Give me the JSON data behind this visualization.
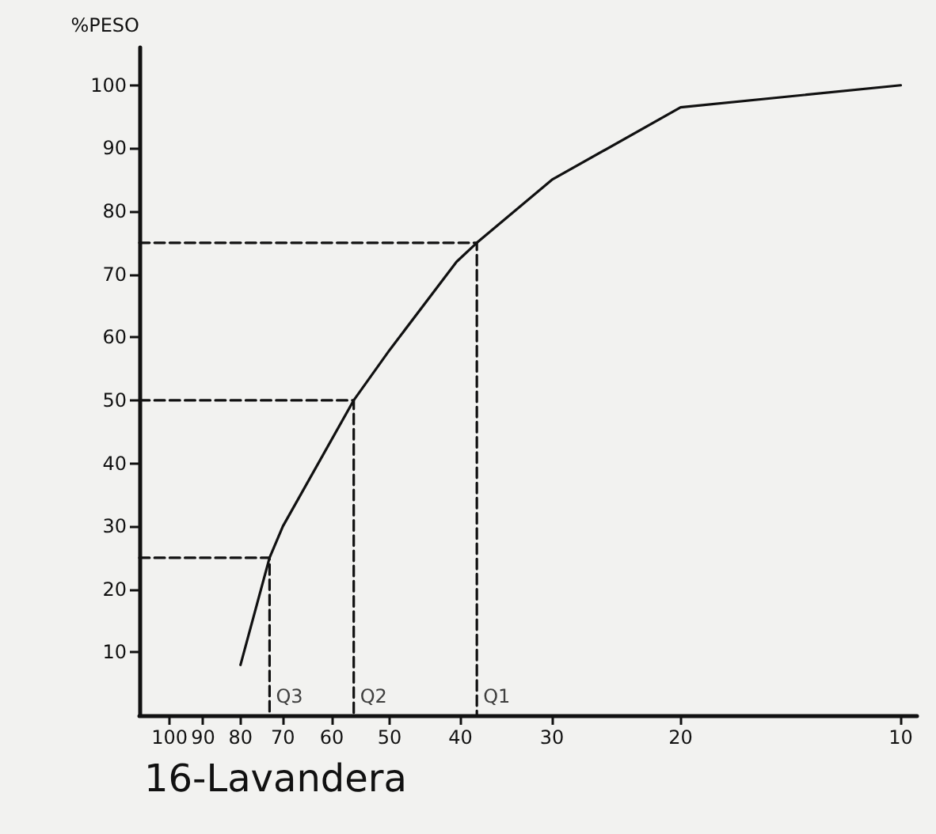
{
  "chart_data": {
    "type": "line",
    "title": "16-Lavandera",
    "ylabel": "%PESO",
    "log": "x",
    "grid": false,
    "marker": "none",
    "xlim": [
      110,
      9.5
    ],
    "xticks": [
      100,
      90,
      80,
      70,
      60,
      50,
      40,
      30,
      20,
      10
    ],
    "ylim": [
      0,
      106
    ],
    "yticks": [
      10,
      20,
      30,
      40,
      50,
      60,
      70,
      80,
      90,
      100
    ],
    "series": [
      {
        "color": "#111111",
        "x": [
          80,
          73,
          70,
          56,
          50,
          40.5,
          38,
          30,
          20,
          10
        ],
        "values": [
          8,
          25,
          30,
          50,
          58,
          72,
          75,
          85,
          96.5,
          100
        ]
      },
      {
        "color": "#111111",
        "line_style": "dashed",
        "x": [
          110,
          73,
          73
        ],
        "values": [
          25,
          25,
          0
        ]
      },
      {
        "color": "#111111",
        "line_style": "dashed",
        "x": [
          110,
          56,
          56
        ],
        "values": [
          50,
          50,
          0
        ]
      },
      {
        "color": "#111111",
        "line_style": "dashed",
        "x": [
          110,
          38,
          38
        ],
        "values": [
          75,
          75,
          0
        ]
      }
    ],
    "annotations": [
      {
        "text": "Q3",
        "x": 73,
        "y": 0
      },
      {
        "text": "Q2",
        "x": 56,
        "y": 0
      },
      {
        "text": "Q1",
        "x": 38,
        "y": 0
      }
    ]
  }
}
